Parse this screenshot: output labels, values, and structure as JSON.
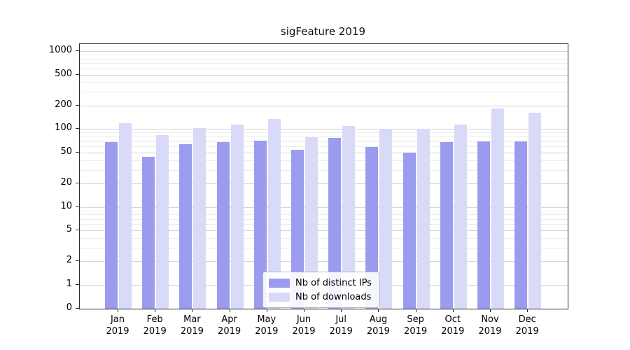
{
  "chart_data": {
    "type": "bar",
    "title": "sigFeature 2019",
    "categories": [
      "Jan 2019",
      "Feb 2019",
      "Mar 2019",
      "Apr 2019",
      "May 2019",
      "Jun 2019",
      "Jul 2019",
      "Aug 2019",
      "Sep 2019",
      "Oct 2019",
      "Nov 2019",
      "Dec 2019"
    ],
    "series": [
      {
        "name": "Nb of distinct IPs",
        "color": "#9b9bef",
        "values": [
          68,
          44,
          64,
          68,
          71,
          54,
          77,
          59,
          50,
          68,
          70,
          70
        ]
      },
      {
        "name": "Nb of downloads",
        "color": "#d9d9f8",
        "values": [
          120,
          83,
          103,
          115,
          135,
          79,
          110,
          101,
          100,
          113,
          185,
          162
        ]
      }
    ],
    "yscale": "symlog",
    "yticks": [
      0,
      1,
      2,
      5,
      10,
      20,
      50,
      100,
      200,
      500,
      1000
    ],
    "ylim": [
      0,
      1200
    ],
    "grid": true,
    "legend_position": "lower center",
    "colors": {
      "major_grid": "#d6d6d6",
      "minor_grid": "#ececec"
    }
  }
}
